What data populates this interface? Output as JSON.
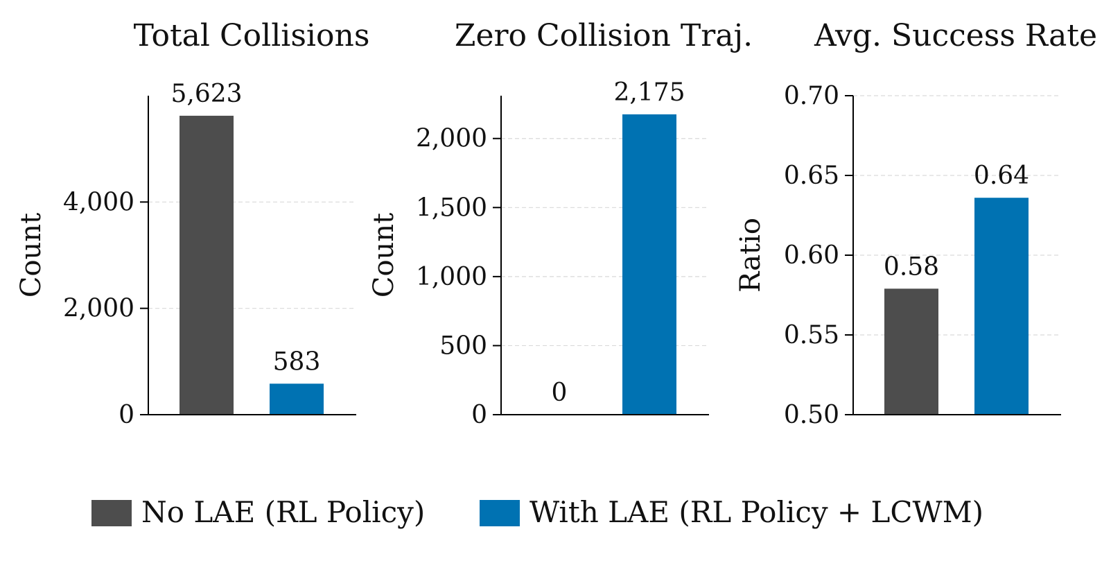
{
  "chart_data": [
    {
      "type": "bar",
      "title": "Total Collisions",
      "ylabel": "Count",
      "categories": [
        "No LAE (RL Policy)",
        "With LAE (RL Policy + LCWM)"
      ],
      "values": [
        5623,
        583
      ],
      "value_labels": [
        "5,623",
        "583"
      ],
      "ylim": [
        0,
        6000
      ],
      "yticks": [
        0,
        2000,
        4000
      ],
      "ytick_labels": [
        "0",
        "2,000",
        "4,000"
      ],
      "grid": "y-dashed"
    },
    {
      "type": "bar",
      "title": "Zero Collision Traj.",
      "ylabel": "Count",
      "categories": [
        "No LAE (RL Policy)",
        "With LAE (RL Policy + LCWM)"
      ],
      "values": [
        0,
        2175
      ],
      "value_labels": [
        "0",
        "2,175"
      ],
      "ylim": [
        0,
        2310
      ],
      "yticks": [
        0,
        500,
        1000,
        1500,
        2000
      ],
      "ytick_labels": [
        "0",
        "500",
        "1,000",
        "1,500",
        "2,000"
      ],
      "grid": "y-dashed"
    },
    {
      "type": "bar",
      "title": "Avg. Success Rate",
      "ylabel": "Ratio",
      "categories": [
        "No LAE (RL Policy)",
        "With LAE (RL Policy + LCWM)"
      ],
      "values": [
        0.579,
        0.636
      ],
      "value_labels": [
        "0.58",
        "0.64"
      ],
      "ylim": [
        0.5,
        0.7
      ],
      "yticks": [
        0.5,
        0.55,
        0.6,
        0.65,
        0.7
      ],
      "ytick_labels": [
        "0.50",
        "0.55",
        "0.60",
        "0.65",
        "0.70"
      ],
      "grid": "y-dashed"
    }
  ],
  "legend": {
    "placement": "bottom-center",
    "items": [
      {
        "label": "No LAE (RL Policy)",
        "color": "#4d4d4d"
      },
      {
        "label": "With LAE (RL Policy + LCWM)",
        "color": "#0072b2"
      }
    ]
  },
  "colors": {
    "series": [
      "#4d4d4d",
      "#0072b2"
    ],
    "grid": "#d9d9d9",
    "axis": "#000000"
  }
}
